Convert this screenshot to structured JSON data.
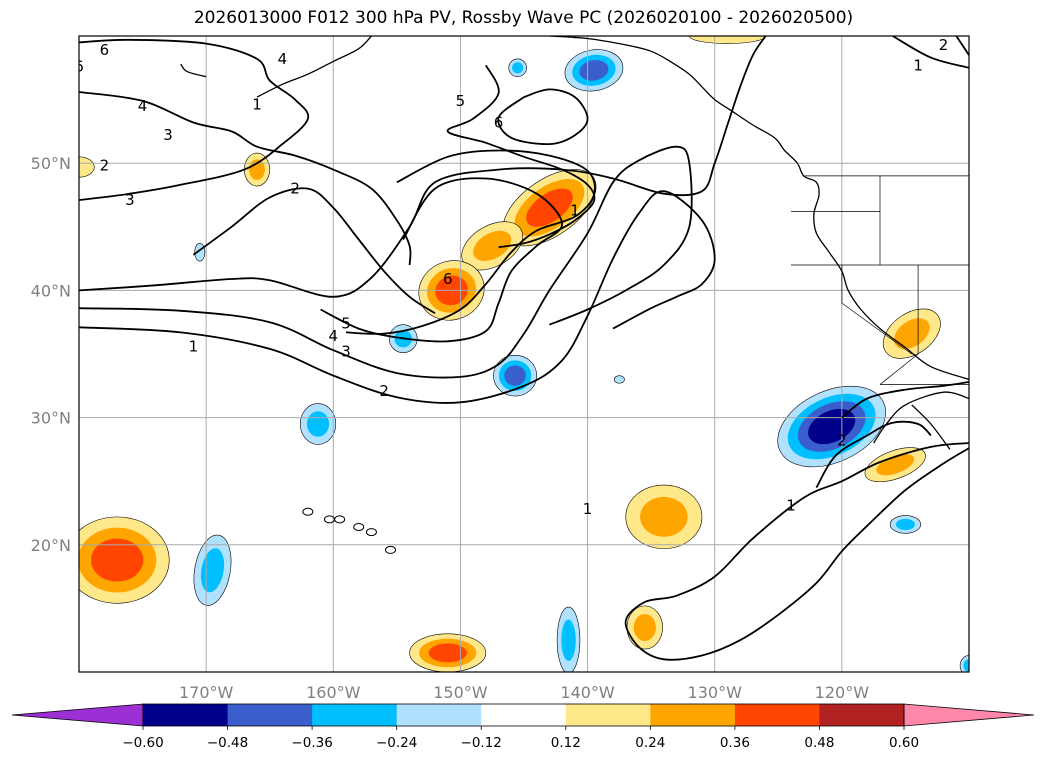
{
  "title": "2026013000 F012 300 hPa PV, Rossby Wave PC (2026020100 - 2026020500)",
  "map": {
    "projection": "PlateCarree",
    "extent": {
      "lon_min": -180,
      "lon_max": -110,
      "lat_min": 10,
      "lat_max": 60
    },
    "grid": true,
    "lon_ticks": [
      {
        "value": -170,
        "label": "170°W"
      },
      {
        "value": -160,
        "label": "160°W"
      },
      {
        "value": -150,
        "label": "150°W"
      },
      {
        "value": -140,
        "label": "140°W"
      },
      {
        "value": -130,
        "label": "130°W"
      },
      {
        "value": -120,
        "label": "120°W"
      }
    ],
    "lat_ticks": [
      {
        "value": 20,
        "label": "20°N"
      },
      {
        "value": 30,
        "label": "30°N"
      },
      {
        "value": 40,
        "label": "40°N"
      },
      {
        "value": 50,
        "label": "50°N"
      }
    ],
    "contour_labels": [
      {
        "text": "6",
        "lon": -178,
        "lat": 58.9
      },
      {
        "text": "6",
        "lon": -180,
        "lat": 57.6
      },
      {
        "text": "4",
        "lon": -164,
        "lat": 58.2
      },
      {
        "text": "1",
        "lon": -166,
        "lat": 54.6
      },
      {
        "text": "4",
        "lon": -175,
        "lat": 54.5
      },
      {
        "text": "3",
        "lon": -173,
        "lat": 52.2
      },
      {
        "text": "2",
        "lon": -178,
        "lat": 49.8
      },
      {
        "text": "3",
        "lon": -176,
        "lat": 47.1
      },
      {
        "text": "2",
        "lon": -163,
        "lat": 48.0
      },
      {
        "text": "5",
        "lon": -150,
        "lat": 54.9
      },
      {
        "text": "6",
        "lon": -147,
        "lat": 53.2
      },
      {
        "text": "1",
        "lon": -141,
        "lat": 46.3
      },
      {
        "text": "6",
        "lon": -151,
        "lat": 40.9
      },
      {
        "text": "5",
        "lon": -159,
        "lat": 37.4
      },
      {
        "text": "4",
        "lon": -160,
        "lat": 36.4
      },
      {
        "text": "3",
        "lon": -159,
        "lat": 35.2
      },
      {
        "text": "1",
        "lon": -171,
        "lat": 35.6
      },
      {
        "text": "2",
        "lon": -156,
        "lat": 32.1
      },
      {
        "text": "1",
        "lon": -140,
        "lat": 22.8
      },
      {
        "text": "2",
        "lon": -120,
        "lat": 28.2
      },
      {
        "text": "1",
        "lon": -124,
        "lat": 23.1
      },
      {
        "text": "2",
        "lon": -112,
        "lat": 59.3
      },
      {
        "text": "1",
        "lon": -114,
        "lat": 57.7
      }
    ],
    "contour_lines": [
      [
        [
          -180,
          40.0
        ],
        [
          -174,
          40.4
        ],
        [
          -168,
          40.9
        ],
        [
          -165,
          40.8
        ],
        [
          -160,
          39.5
        ],
        [
          -157,
          41
        ],
        [
          -154,
          45
        ],
        [
          -152,
          48.5
        ],
        [
          -147,
          49.5
        ],
        [
          -142,
          49.5
        ],
        [
          -138,
          48.8
        ],
        [
          -134,
          47.6
        ],
        [
          -131,
          47.8
        ],
        [
          -130,
          50
        ],
        [
          -129,
          53
        ],
        [
          -128,
          56
        ],
        [
          -127,
          58.5
        ],
        [
          -126,
          60
        ]
      ],
      [
        [
          -180,
          38.6
        ],
        [
          -172,
          38.4
        ],
        [
          -165,
          37.5
        ],
        [
          -160,
          35.3
        ],
        [
          -155,
          33.5
        ],
        [
          -150,
          33.2
        ],
        [
          -147,
          34.2
        ],
        [
          -145,
          36.6
        ],
        [
          -143,
          40
        ],
        [
          -140,
          44.5
        ],
        [
          -138,
          48.5
        ],
        [
          -136,
          50.2
        ],
        [
          -133,
          51.3
        ],
        [
          -132,
          50
        ],
        [
          -132,
          45
        ],
        [
          -134,
          42
        ],
        [
          -137,
          40
        ],
        [
          -140,
          38.5
        ],
        [
          -143,
          37.3
        ]
      ],
      [
        [
          -180,
          37.1
        ],
        [
          -172,
          36.7
        ],
        [
          -165,
          35.4
        ],
        [
          -160,
          33.3
        ],
        [
          -155,
          31.6
        ],
        [
          -150,
          31.2
        ],
        [
          -145,
          32.5
        ],
        [
          -142,
          34.5
        ],
        [
          -140,
          38
        ],
        [
          -138,
          42.5
        ],
        [
          -136,
          46
        ],
        [
          -134,
          47.8
        ],
        [
          -131,
          45.5
        ],
        [
          -130,
          42.5
        ],
        [
          -131,
          40.5
        ],
        [
          -133,
          39.5
        ],
        [
          -135,
          38.6
        ],
        [
          -138,
          37
        ]
      ],
      [
        [
          -180,
          59.5
        ],
        [
          -176,
          59.7
        ],
        [
          -170,
          59.4
        ],
        [
          -166,
          58.2
        ],
        [
          -165,
          56.5
        ],
        [
          -163,
          55
        ],
        [
          -162,
          53.5
        ],
        [
          -164,
          51.5
        ],
        [
          -167,
          49.5
        ],
        [
          -172,
          48.3
        ],
        [
          -176,
          47.6
        ],
        [
          -180,
          47.1
        ]
      ],
      [
        [
          -180,
          55.6
        ],
        [
          -175,
          54.9
        ],
        [
          -171,
          53.2
        ],
        [
          -168,
          52.5
        ],
        [
          -166,
          51.3
        ],
        [
          -163,
          50.6
        ],
        [
          -160,
          49.5
        ],
        [
          -157,
          48
        ],
        [
          -155,
          45.5
        ],
        [
          -154,
          43.5
        ],
        [
          -154,
          42
        ]
      ],
      [
        [
          -148,
          57.7
        ],
        [
          -147,
          55.5
        ],
        [
          -149,
          53.5
        ],
        [
          -151,
          52.5
        ],
        [
          -148,
          51.6
        ],
        [
          -145,
          50.5
        ],
        [
          -142,
          49.5
        ],
        [
          -140,
          48.3
        ],
        [
          -139.5,
          47
        ],
        [
          -141,
          45.5
        ],
        [
          -143,
          44.4
        ],
        [
          -145,
          43.7
        ],
        [
          -147,
          43.4
        ]
      ],
      [
        [
          -145,
          55.2
        ],
        [
          -147,
          53.6
        ],
        [
          -146,
          52
        ],
        [
          -143,
          51.5
        ],
        [
          -141,
          52.2
        ],
        [
          -140,
          53.5
        ],
        [
          -141,
          55.2
        ],
        [
          -143,
          55.8
        ],
        [
          -145,
          55.2
        ]
      ],
      [
        [
          -155,
          48.5
        ],
        [
          -151,
          50.5
        ],
        [
          -147,
          51
        ],
        [
          -143,
          50.6
        ],
        [
          -140,
          49.4
        ],
        [
          -139.5,
          47.5
        ],
        [
          -141,
          45.8
        ],
        [
          -144,
          44.7
        ],
        [
          -146,
          43
        ],
        [
          -148,
          40.5
        ],
        [
          -150,
          38.5
        ],
        [
          -153,
          37.2
        ],
        [
          -156,
          36.6
        ],
        [
          -159,
          36.7
        ]
      ],
      [
        [
          -154.5,
          44
        ],
        [
          -152,
          48
        ],
        [
          -148,
          48.8
        ],
        [
          -144,
          47.6
        ],
        [
          -142,
          45.2
        ],
        [
          -144,
          43.5
        ],
        [
          -146,
          41.5
        ],
        [
          -147,
          39
        ],
        [
          -148,
          36.8
        ],
        [
          -151,
          36
        ],
        [
          -155,
          36.3
        ],
        [
          -158,
          37
        ],
        [
          -161,
          38.5
        ]
      ],
      [
        [
          -171,
          42.8
        ],
        [
          -168,
          45
        ],
        [
          -165,
          47.3
        ],
        [
          -162,
          48
        ],
        [
          -160,
          46.5
        ],
        [
          -158,
          44
        ],
        [
          -156,
          41.5
        ],
        [
          -154,
          39.5
        ],
        [
          -152,
          38.2
        ]
      ],
      [
        [
          -120,
          30
        ],
        [
          -118,
          31.5
        ],
        [
          -115,
          32.2
        ],
        [
          -112,
          32.5
        ],
        [
          -110,
          32.8
        ]
      ],
      [
        [
          -110,
          28
        ],
        [
          -113,
          27.7
        ],
        [
          -117,
          26.5
        ],
        [
          -120,
          25
        ],
        [
          -123,
          23.7
        ],
        [
          -127,
          20.5
        ],
        [
          -130,
          17.5
        ],
        [
          -133,
          16
        ],
        [
          -135.5,
          15.5
        ],
        [
          -137,
          14
        ],
        [
          -136,
          12
        ],
        [
          -134,
          11
        ],
        [
          -131,
          11.3
        ],
        [
          -128,
          12.5
        ],
        [
          -125,
          14.5
        ],
        [
          -122,
          17
        ],
        [
          -120,
          19.5
        ],
        [
          -118,
          21.5
        ],
        [
          -115,
          24.3
        ],
        [
          -112,
          26.4
        ],
        [
          -110,
          27.6
        ]
      ],
      [
        [
          -122,
          24.5
        ],
        [
          -120.5,
          27
        ],
        [
          -118,
          28.6
        ],
        [
          -116,
          29.6
        ],
        [
          -114,
          29.5
        ],
        [
          -113,
          28.6
        ]
      ],
      [
        [
          -111,
          60
        ],
        [
          -110,
          58.5
        ]
      ],
      [
        [
          -116,
          60
        ],
        [
          -113,
          58.3
        ],
        [
          -110,
          57.5
        ]
      ]
    ],
    "pv_anomalies": [
      {
        "lon": -143,
        "lat": 46.5,
        "rx": 4.2,
        "ry": 2.2,
        "rot": -35,
        "value": 0.4
      },
      {
        "lon": -147.5,
        "lat": 43.5,
        "rx": 2.6,
        "ry": 1.6,
        "rot": -30,
        "value": 0.3
      },
      {
        "lon": -150.7,
        "lat": 40,
        "rx": 2.6,
        "ry": 2.3,
        "rot": -20,
        "value": 0.36
      },
      {
        "lon": -166,
        "lat": 49.5,
        "rx": 1,
        "ry": 1.3,
        "rot": 0,
        "value": 0.28
      },
      {
        "lon": -180,
        "lat": 49.7,
        "rx": 1.2,
        "ry": 0.8,
        "rot": 0,
        "value": 0.2
      },
      {
        "lon": -177,
        "lat": 18.8,
        "rx": 4.1,
        "ry": 3.4,
        "rot": 0,
        "value": 0.42
      },
      {
        "lon": -151,
        "lat": 11.5,
        "rx": 3,
        "ry": 1.5,
        "rot": 0,
        "value": 0.36
      },
      {
        "lon": -134,
        "lat": 22.2,
        "rx": 3,
        "ry": 2.5,
        "rot": 0,
        "value": 0.32
      },
      {
        "lon": -135.5,
        "lat": 13.5,
        "rx": 1.4,
        "ry": 1.7,
        "rot": 0,
        "value": 0.26
      },
      {
        "lon": -114.5,
        "lat": 36.6,
        "rx": 2.5,
        "ry": 1.6,
        "rot": -35,
        "value": 0.28
      },
      {
        "lon": -115.8,
        "lat": 26.3,
        "rx": 2.5,
        "ry": 1.1,
        "rot": -20,
        "value": 0.3
      },
      {
        "lon": -129,
        "lat": 60,
        "rx": 3,
        "ry": 0.6,
        "rot": 0,
        "value": 0.2
      },
      {
        "lon": -139.5,
        "lat": 57.3,
        "rx": 2.3,
        "ry": 1.6,
        "rot": -10,
        "value": -0.42
      },
      {
        "lon": -145.5,
        "lat": 57.5,
        "rx": 0.7,
        "ry": 0.7,
        "rot": 0,
        "value": -0.3
      },
      {
        "lon": -145.7,
        "lat": 33.3,
        "rx": 1.7,
        "ry": 1.6,
        "rot": 0,
        "value": -0.45
      },
      {
        "lon": -154.5,
        "lat": 36.2,
        "rx": 1.1,
        "ry": 1.1,
        "rot": 0,
        "value": -0.3
      },
      {
        "lon": -170.5,
        "lat": 43,
        "rx": 0.4,
        "ry": 0.7,
        "rot": 0,
        "value": -0.18
      },
      {
        "lon": -161.2,
        "lat": 29.5,
        "rx": 1.4,
        "ry": 1.6,
        "rot": 0,
        "value": -0.3
      },
      {
        "lon": -169.5,
        "lat": 18,
        "rx": 1.4,
        "ry": 2.8,
        "rot": 10,
        "value": -0.3
      },
      {
        "lon": -120.8,
        "lat": 29.3,
        "rx": 4.5,
        "ry": 2.8,
        "rot": -25,
        "value": -0.58
      },
      {
        "lon": -115,
        "lat": 21.6,
        "rx": 1.2,
        "ry": 0.7,
        "rot": 0,
        "value": -0.3
      },
      {
        "lon": -141.5,
        "lat": 12.5,
        "rx": 0.9,
        "ry": 2.6,
        "rot": 0,
        "value": -0.3
      },
      {
        "lon": -110,
        "lat": 10.5,
        "rx": 0.7,
        "ry": 0.8,
        "rot": 0,
        "value": -0.3
      },
      {
        "lon": -137.5,
        "lat": 33,
        "rx": 0.4,
        "ry": 0.3,
        "rot": 0,
        "value": -0.2
      }
    ],
    "coastline": [
      [
        [
          -110,
          33
        ],
        [
          -113,
          34
        ],
        [
          -115,
          35.5
        ],
        [
          -117,
          37
        ],
        [
          -118.5,
          38.5
        ],
        [
          -119.5,
          40
        ],
        [
          -120,
          41.5
        ],
        [
          -121,
          43
        ],
        [
          -122,
          44.5
        ],
        [
          -122.2,
          46
        ],
        [
          -121.8,
          47.5
        ],
        [
          -122,
          48.5
        ],
        [
          -123,
          49
        ],
        [
          -123.5,
          50
        ],
        [
          -124.5,
          51
        ],
        [
          -125.3,
          52
        ],
        [
          -127,
          53
        ],
        [
          -128.5,
          54
        ],
        [
          -130,
          55
        ],
        [
          -131,
          56
        ],
        [
          -132,
          57
        ],
        [
          -133.5,
          58
        ],
        [
          -135,
          58.8
        ],
        [
          -137,
          59.3
        ],
        [
          -140,
          59.8
        ],
        [
          -143,
          60
        ]
      ],
      [
        [
          -110,
          31.5
        ],
        [
          -112,
          32
        ],
        [
          -115,
          31
        ],
        [
          -116.5,
          29.5
        ],
        [
          -117.5,
          28
        ]
      ],
      [
        [
          -111.5,
          27.5
        ],
        [
          -113,
          29.5
        ],
        [
          -114.5,
          31
        ]
      ],
      [
        [
          -157,
          60
        ],
        [
          -158,
          59
        ],
        [
          -160,
          58
        ],
        [
          -162,
          57
        ],
        [
          -164,
          56.2
        ],
        [
          -166,
          55.2
        ]
      ],
      [
        [
          -172,
          57.8
        ],
        [
          -171.5,
          57.2
        ],
        [
          -170,
          56.8
        ]
      ]
    ],
    "islands": [
      {
        "lon": -155.5,
        "lat": 19.6
      },
      {
        "lon": -157,
        "lat": 21
      },
      {
        "lon": -158,
        "lat": 21.4
      },
      {
        "lon": -159.5,
        "lat": 22
      },
      {
        "lon": -160.3,
        "lat": 22
      },
      {
        "lon": -162,
        "lat": 22.6
      }
    ],
    "borders": [
      [
        [
          -123,
          49
        ],
        [
          -110,
          49
        ]
      ],
      [
        [
          -117,
          32.6
        ],
        [
          -110,
          32.6
        ]
      ],
      [
        [
          -141,
          60
        ],
        [
          -141,
          59.8
        ]
      ],
      [
        [
          -124,
          42
        ],
        [
          -110,
          42
        ]
      ],
      [
        [
          -117,
          49
        ],
        [
          -117,
          42
        ]
      ],
      [
        [
          -114,
          42
        ],
        [
          -114,
          35
        ],
        [
          -117,
          32.6
        ]
      ],
      [
        [
          -124,
          46.2
        ],
        [
          -117,
          46.2
        ]
      ],
      [
        [
          -120,
          42
        ],
        [
          -120,
          39
        ],
        [
          -114.5,
          35
        ]
      ]
    ]
  },
  "colorbar": {
    "levels": [
      -0.6,
      -0.48,
      -0.36,
      -0.24,
      -0.12,
      0.12,
      0.24,
      0.36,
      0.48,
      0.6
    ],
    "tick_labels": [
      "−0.60",
      "−0.48",
      "−0.36",
      "−0.24",
      "−0.12",
      "0.12",
      "0.24",
      "0.36",
      "0.48",
      "0.60"
    ],
    "colors": [
      "#9b30d5",
      "#00008b",
      "#3a5fcd",
      "#00bfff",
      "#b0e2ff",
      "#ffffff",
      "#ffe88a",
      "#ffa500",
      "#ff4500",
      "#b22222",
      "#ff88aa"
    ]
  }
}
